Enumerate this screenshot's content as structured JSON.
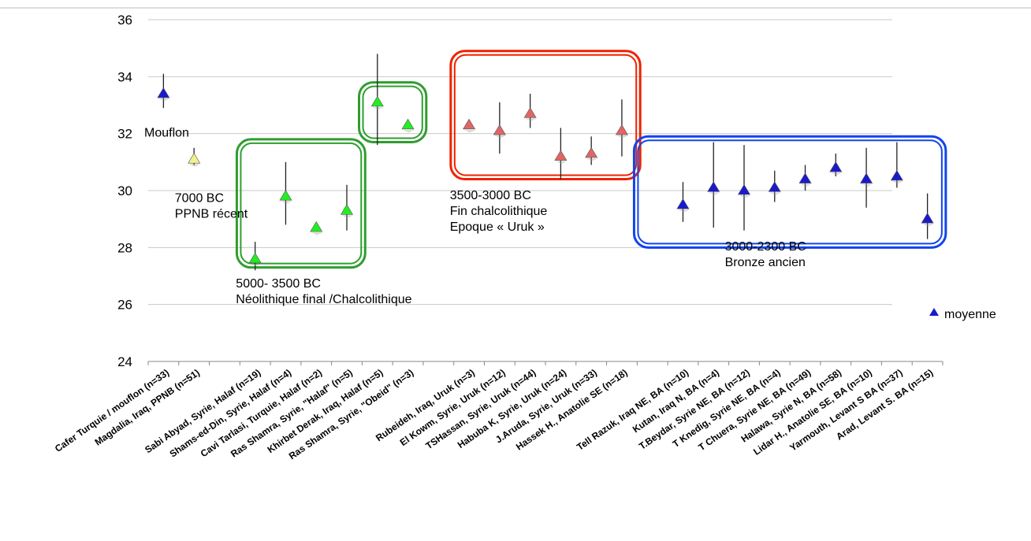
{
  "chart_data": {
    "type": "scatter",
    "title": "",
    "xlabel": "",
    "ylabel": "",
    "ylim": [
      24,
      36
    ],
    "yticks": [
      24,
      26,
      28,
      30,
      32,
      34,
      36
    ],
    "grid": true,
    "legend_position": "right",
    "legend": [
      {
        "label": "moyenne",
        "color": "#1a1acc"
      }
    ],
    "categories": [
      "Cafer Turquie / mouflon (n=33)",
      "Magdalia, Iraq, PPNB (n=51)",
      "",
      "Sabi Abyad, Syrie, Halaf (n=19)",
      "Shams-ed-Din, Syrie, Halaf (n=4)",
      "Cavi Tarlasi, Turquie, Halaf (n=2)",
      "Ras Shamra, Syrie, \"Halaf\" (n=5)",
      "Khirbet Derak, Iraq, Halaf (n=5)",
      "Ras Shamra, Syrie, \"Obeid\" (n=3)",
      "",
      "Rubeideh, Iraq, Uruk (n=3)",
      "El Kowm, Syrie, Uruk (n=12)",
      "TSHassan, Syrie, Uruk (n=44)",
      "Habuba K, Syrie, Uruk (n=24)",
      "J.Aruda, Syrie, Uruk (n=33)",
      "Hassek H., Anatolie SE (n=18)",
      "",
      "Tell Razuk, Iraq NE, BA (n=10)",
      "Kutan, Iraq N, BA (n=4)",
      "T.Beydar, Syrie NE, BA (n=12)",
      "T Knedig, Syrie NE, BA (n=4)",
      "T Chuera, Syrie NE, BA (n=49)",
      "Halawa, Syrie N, BA  (n=58)",
      "Lidar H., Anatolie SE, BA  (n=10)",
      "Yarmouth, Levant S BA (n=37)",
      "Arad, Levant S. BA (n=15)"
    ],
    "points": [
      {
        "index": 0,
        "mean": 33.4,
        "low": 32.9,
        "high": 34.1,
        "color": "#1a1acc"
      },
      {
        "index": 1,
        "mean": 31.1,
        "low": 30.9,
        "high": 31.5,
        "color": "#f2f28c"
      },
      {
        "index": 3,
        "mean": 27.6,
        "low": 27.2,
        "high": 28.2,
        "color": "#22ee22"
      },
      {
        "index": 4,
        "mean": 29.8,
        "low": 28.8,
        "high": 31.0,
        "color": "#22ee22"
      },
      {
        "index": 5,
        "mean": 28.7,
        "low": 28.7,
        "high": 28.7,
        "color": "#22ee22"
      },
      {
        "index": 6,
        "mean": 29.3,
        "low": 28.6,
        "high": 30.2,
        "color": "#22ee22"
      },
      {
        "index": 7,
        "mean": 33.1,
        "low": 31.6,
        "high": 34.8,
        "color": "#22ee22"
      },
      {
        "index": 8,
        "mean": 32.3,
        "low": 32.3,
        "high": 32.3,
        "color": "#22ee22"
      },
      {
        "index": 10,
        "mean": 32.3,
        "low": 32.3,
        "high": 32.3,
        "color": "#e06666"
      },
      {
        "index": 11,
        "mean": 32.1,
        "low": 31.3,
        "high": 33.1,
        "color": "#e06666"
      },
      {
        "index": 12,
        "mean": 32.7,
        "low": 32.2,
        "high": 33.4,
        "color": "#e06666"
      },
      {
        "index": 13,
        "mean": 31.2,
        "low": 30.4,
        "high": 32.2,
        "color": "#e06666"
      },
      {
        "index": 14,
        "mean": 31.3,
        "low": 30.9,
        "high": 31.9,
        "color": "#e06666"
      },
      {
        "index": 15,
        "mean": 32.1,
        "low": 31.2,
        "high": 33.2,
        "color": "#e06666"
      },
      {
        "index": 17,
        "mean": 29.5,
        "low": 28.9,
        "high": 30.3,
        "color": "#1a1acc"
      },
      {
        "index": 18,
        "mean": 30.1,
        "low": 28.7,
        "high": 31.7,
        "color": "#1a1acc"
      },
      {
        "index": 19,
        "mean": 30.0,
        "low": 28.6,
        "high": 31.6,
        "color": "#1a1acc"
      },
      {
        "index": 20,
        "mean": 30.1,
        "low": 29.6,
        "high": 30.7,
        "color": "#1a1acc"
      },
      {
        "index": 21,
        "mean": 30.4,
        "low": 30.0,
        "high": 30.9,
        "color": "#1a1acc"
      },
      {
        "index": 22,
        "mean": 30.8,
        "low": 30.5,
        "high": 31.3,
        "color": "#1a1acc"
      },
      {
        "index": 23,
        "mean": 30.4,
        "low": 29.4,
        "high": 31.5,
        "color": "#1a1acc"
      },
      {
        "index": 24,
        "mean": 30.5,
        "low": 30.1,
        "high": 31.7,
        "color": "#1a1acc"
      },
      {
        "index": 25,
        "mean": 29.0,
        "low": 28.3,
        "high": 29.9,
        "color": "#1a1acc"
      }
    ],
    "groups": [
      {
        "color": "#2e9e2e",
        "from": 3,
        "to": 6,
        "ymin": 27.3,
        "ymax": 31.8
      },
      {
        "color": "#2e9e2e",
        "from": 7,
        "to": 8,
        "ymin": 31.7,
        "ymax": 33.8
      },
      {
        "color": "#ee2200",
        "from": 10,
        "to": 15,
        "ymin": 30.4,
        "ymax": 34.9
      },
      {
        "color": "#1144ee",
        "from": 16,
        "to": 25,
        "ymin": 28.0,
        "ymax": 31.9
      }
    ],
    "annotations": [
      {
        "lines": [
          "Mouflon"
        ],
        "index": 0,
        "y": 31.9
      },
      {
        "lines": [
          "7000 BC",
          "PPNB récent"
        ],
        "index": 1,
        "y": 29.6
      },
      {
        "lines": [
          "5000- 3500 BC",
          "Néolithique final /Chalcolithique"
        ],
        "index": 3,
        "y": 26.6
      },
      {
        "lines": [
          "3500-3000 BC",
          "Fin chalcolithique",
          "Epoque « Uruk »"
        ],
        "index": 10,
        "y": 29.7
      },
      {
        "lines": [
          "3000-2300 BC",
          "Bronze ancien"
        ],
        "index": 19,
        "y": 27.9
      }
    ]
  }
}
